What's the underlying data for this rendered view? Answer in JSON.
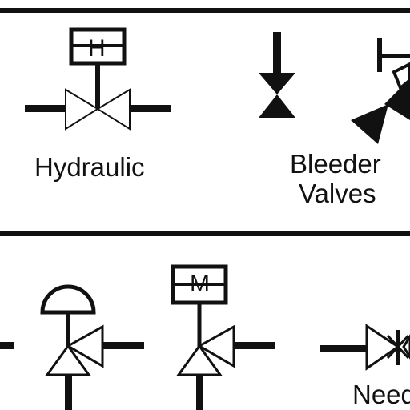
{
  "diagram": {
    "top_panel": {
      "hydraulic_label": "Hydraulic",
      "hydraulic_actuator_letter": "H",
      "bleeder_label_line1": "Bleeder",
      "bleeder_label_line2": "Valves"
    },
    "bottom_panel": {
      "motor_actuator_letter": "M",
      "needle_label_partial": "Need"
    },
    "colors": {
      "stroke": "#111111",
      "background": "#ffffff"
    }
  }
}
